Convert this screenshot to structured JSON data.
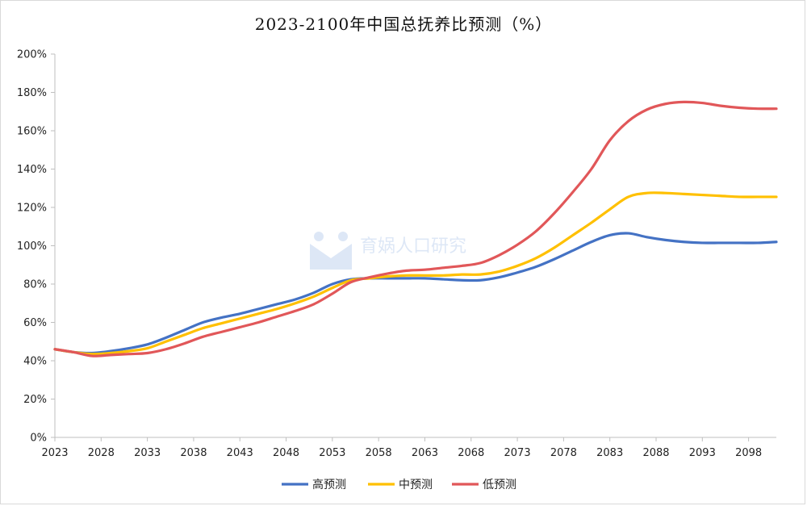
{
  "chart_data": {
    "type": "line",
    "title": "2023-2100年中国总抚养比预测（%）",
    "xlabel": "",
    "ylabel": "",
    "x_range": [
      2023,
      2101
    ],
    "x_ticks": [
      2023,
      2028,
      2033,
      2038,
      2043,
      2048,
      2053,
      2058,
      2063,
      2068,
      2073,
      2078,
      2083,
      2088,
      2093,
      2098
    ],
    "ylim": [
      0,
      200
    ],
    "y_ticks": [
      0,
      20,
      40,
      60,
      80,
      100,
      120,
      140,
      160,
      180,
      200
    ],
    "y_unit": "%",
    "grid": false,
    "legend_position": "bottom",
    "x": [
      2023,
      2025,
      2027,
      2029,
      2031,
      2033,
      2035,
      2037,
      2039,
      2041,
      2043,
      2045,
      2047,
      2049,
      2051,
      2053,
      2055,
      2057,
      2059,
      2061,
      2063,
      2065,
      2067,
      2069,
      2071,
      2073,
      2075,
      2077,
      2079,
      2081,
      2083,
      2085,
      2087,
      2089,
      2091,
      2093,
      2095,
      2097,
      2099,
      2101
    ],
    "series": [
      {
        "name": "高预测",
        "color": "#4472c4",
        "values": [
          46,
          44.5,
          44,
          45,
          46.5,
          48.5,
          52,
          56,
          60,
          62.5,
          64.5,
          67,
          69.5,
          72,
          75.5,
          80,
          82.5,
          83,
          83,
          83,
          83,
          82.5,
          82,
          82,
          83.5,
          86,
          89,
          93,
          97.5,
          102,
          105.5,
          106.5,
          104.5,
          103,
          102,
          101.5,
          101.5,
          101.5,
          101.5,
          102
        ]
      },
      {
        "name": "中预测",
        "color": "#ffc000",
        "values": [
          46,
          44.5,
          43.5,
          44,
          45,
          46.5,
          50,
          53.5,
          57,
          59.5,
          62,
          64.5,
          67,
          70,
          73.5,
          78,
          82,
          83,
          84,
          84.5,
          84.5,
          84.5,
          85,
          85,
          86.5,
          89.5,
          93.5,
          99,
          105.5,
          112,
          119,
          125.5,
          127.5,
          127.5,
          127,
          126.5,
          126,
          125.5,
          125.5,
          125.5
        ]
      },
      {
        "name": "低预测",
        "color": "#e15759",
        "values": [
          46,
          44.5,
          42.5,
          43,
          43.5,
          44,
          46,
          49,
          52.5,
          55,
          57.5,
          60,
          63,
          66,
          69.5,
          75,
          81,
          83.5,
          85.5,
          87,
          87.5,
          88.5,
          89.5,
          91,
          95,
          100.5,
          107.5,
          117,
          128,
          140,
          155,
          165,
          171,
          174,
          175,
          174.5,
          173,
          172,
          171.5,
          171.5
        ]
      }
    ]
  },
  "watermark": {
    "text": "育娲人口研究"
  }
}
